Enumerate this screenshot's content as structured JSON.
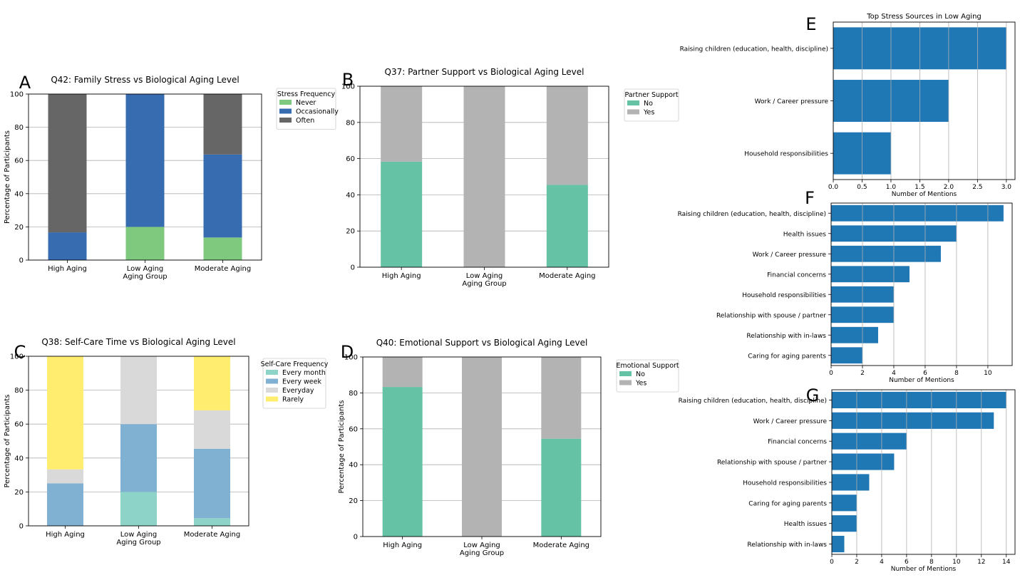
{
  "panel_letters": [
    "A",
    "B",
    "C",
    "D",
    "E",
    "F",
    "G"
  ],
  "colors": {
    "never": "#7fc97f",
    "occasionally": "#386cb0",
    "often": "#666666",
    "no": "#66c2a5",
    "yes": "#b3b3b3",
    "every_month": "#8dd3c7",
    "every_week": "#80b1d3",
    "everyday": "#d9d9d9",
    "rarely": "#ffed6f",
    "hbar": "#1f77b4",
    "grid": "#b0b0b0"
  },
  "chart_data": [
    {
      "id": "A",
      "type": "bar",
      "stacked": true,
      "title": "Q42: Family Stress vs Biological Aging Level",
      "xlabel": "Aging Group",
      "ylabel": "Percentage of Participants",
      "categories": [
        "High Aging",
        "Low Aging",
        "Moderate Aging"
      ],
      "ylim": [
        0,
        100
      ],
      "yticks": [
        0,
        20,
        40,
        60,
        80,
        100
      ],
      "grid": "y",
      "legend_title": "Stress Frequency",
      "legend_position": "outside-top-right",
      "series": [
        {
          "name": "Never",
          "color_key": "never",
          "values": [
            0,
            20,
            13.6
          ]
        },
        {
          "name": "Occasionally",
          "color_key": "occasionally",
          "values": [
            16.7,
            80,
            50
          ]
        },
        {
          "name": "Often",
          "color_key": "often",
          "values": [
            83.3,
            0,
            36.4
          ]
        }
      ]
    },
    {
      "id": "B",
      "type": "bar",
      "stacked": true,
      "title": "Q37: Partner Support vs Biological Aging Level",
      "xlabel": "Aging Group",
      "ylabel": "",
      "categories": [
        "High Aging",
        "Low Aging",
        "Moderate Aging"
      ],
      "ylim": [
        0,
        100
      ],
      "yticks": [
        0,
        20,
        40,
        60,
        80,
        100
      ],
      "grid": "y",
      "legend_title": "Partner Support",
      "legend_position": "outside-top-right",
      "series": [
        {
          "name": "No",
          "color_key": "no",
          "values": [
            58.3,
            0,
            45.5
          ]
        },
        {
          "name": "Yes",
          "color_key": "yes",
          "values": [
            41.7,
            100,
            54.5
          ]
        }
      ]
    },
    {
      "id": "C",
      "type": "bar",
      "stacked": true,
      "title": "Q38: Self-Care Time vs Biological Aging Level",
      "xlabel": "Aging Group",
      "ylabel": "Percentage of Participants",
      "categories": [
        "High Aging",
        "Low Aging",
        "Moderate Aging"
      ],
      "ylim": [
        0,
        100
      ],
      "yticks": [
        0,
        20,
        40,
        60,
        80,
        100
      ],
      "grid": "y",
      "legend_title": "Self-Care Frequency",
      "legend_position": "outside-top-right",
      "series": [
        {
          "name": "Every month",
          "color_key": "every_month",
          "values": [
            0,
            20,
            4.5
          ]
        },
        {
          "name": "Every week",
          "color_key": "every_week",
          "values": [
            25,
            40,
            40.9
          ]
        },
        {
          "name": "Everyday",
          "color_key": "everyday",
          "values": [
            8.3,
            40,
            22.7
          ]
        },
        {
          "name": "Rarely",
          "color_key": "rarely",
          "values": [
            66.7,
            0,
            31.8
          ]
        }
      ]
    },
    {
      "id": "D",
      "type": "bar",
      "stacked": true,
      "title": "Q40: Emotional Support vs Biological Aging Level",
      "xlabel": "Aging Group",
      "ylabel": "Percentage of Participants",
      "categories": [
        "High Aging",
        "Low Aging",
        "Moderate Aging"
      ],
      "ylim": [
        0,
        100
      ],
      "yticks": [
        0,
        20,
        40,
        60,
        80,
        100
      ],
      "grid": "y",
      "legend_title": "Emotional Support",
      "legend_position": "outside-top-right",
      "series": [
        {
          "name": "No",
          "color_key": "no",
          "values": [
            83.3,
            0,
            54.5
          ]
        },
        {
          "name": "Yes",
          "color_key": "yes",
          "values": [
            16.7,
            100,
            45.5
          ]
        }
      ]
    },
    {
      "id": "E",
      "type": "hbar",
      "title": "Top Stress Sources in Low Aging",
      "xlabel": "Number of Mentions",
      "categories": [
        "Raising children (education, health, discipline)",
        "Work / Career pressure",
        "Household responsibilities"
      ],
      "values": [
        3,
        2,
        1
      ],
      "xlim": [
        0,
        3.15
      ],
      "xticks": [
        0,
        0.5,
        1,
        1.5,
        2,
        2.5,
        3
      ],
      "xtick_labels": [
        "0.0",
        "0.5",
        "1.0",
        "1.5",
        "2.0",
        "2.5",
        "3.0"
      ],
      "grid": "x"
    },
    {
      "id": "F",
      "type": "hbar",
      "title": "",
      "xlabel": "Number of Mentions",
      "categories": [
        "Raising children (education, health, discipline)",
        "Health issues",
        "Work / Career pressure",
        "Financial concerns",
        "Household responsibilities",
        "Relationship with spouse / partner",
        "Relationship with in-laws",
        "Caring for aging parents"
      ],
      "values": [
        11,
        8,
        7,
        5,
        4,
        4,
        3,
        2
      ],
      "xlim": [
        0,
        11.55
      ],
      "xticks": [
        0,
        2,
        4,
        6,
        8,
        10
      ],
      "xtick_labels": [
        "0",
        "2",
        "4",
        "6",
        "8",
        "10"
      ],
      "grid": "x"
    },
    {
      "id": "G",
      "type": "hbar",
      "title": "",
      "xlabel": "Number of Mentions",
      "categories": [
        "Raising children (education, health, discipline)",
        "Work / Career pressure",
        "Financial concerns",
        "Relationship with spouse / partner",
        "Household responsibilities",
        "Caring for aging parents",
        "Health issues",
        "Relationship with in-laws"
      ],
      "values": [
        14,
        13,
        6,
        5,
        3,
        2,
        2,
        1
      ],
      "xlim": [
        0,
        14.7
      ],
      "xticks": [
        0,
        2,
        4,
        6,
        8,
        10,
        12,
        14
      ],
      "xtick_labels": [
        "0",
        "2",
        "4",
        "6",
        "8",
        "10",
        "12",
        "14"
      ],
      "grid": "x"
    }
  ]
}
